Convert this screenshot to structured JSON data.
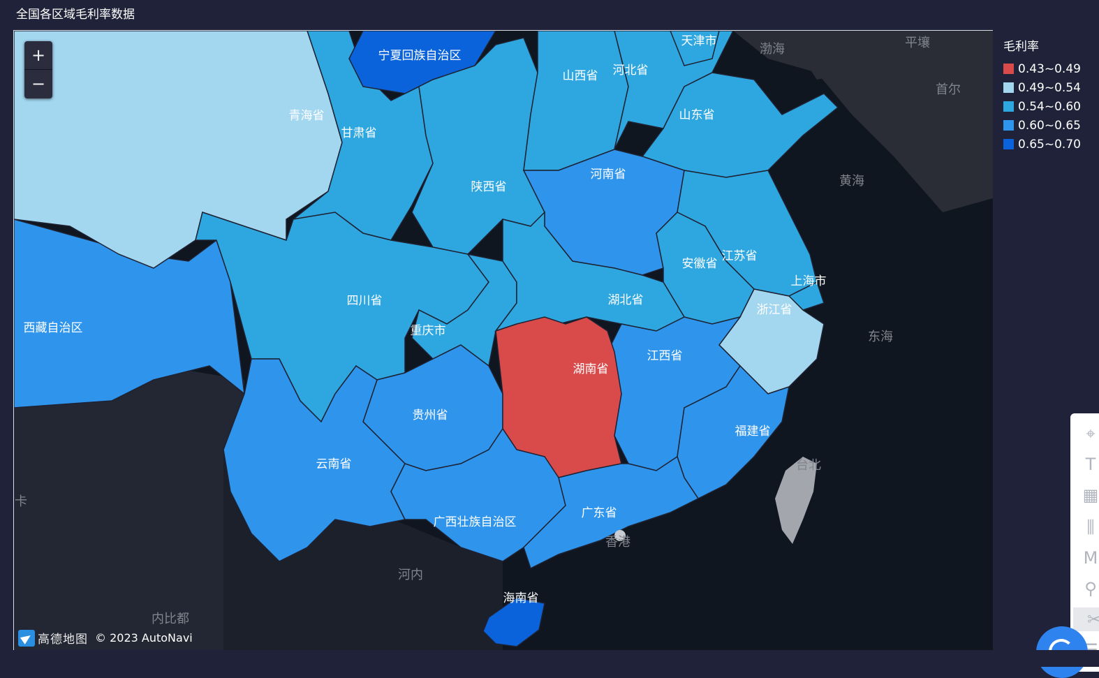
{
  "page": {
    "title": "全国各区域毛利率数据"
  },
  "zoom": {
    "in_label": "+",
    "out_label": "−"
  },
  "legend": {
    "title": "毛利率",
    "items": [
      {
        "range": "0.43~0.49",
        "color": "#d94a4a"
      },
      {
        "range": "0.49~0.54",
        "color": "#a3d7f0"
      },
      {
        "range": "0.54~0.60",
        "color": "#2ea7e0"
      },
      {
        "range": "0.60~0.65",
        "color": "#2f95ec"
      },
      {
        "range": "0.65~0.70",
        "color": "#0b63db"
      }
    ]
  },
  "provinces": {
    "ningxia": "宁夏回族自治区",
    "qinghai": "青海省",
    "gansu": "甘肃省",
    "shanxi": "山西省",
    "hebei": "河北省",
    "tianjin": "天津市",
    "shandong": "山东省",
    "shaanxi": "陕西省",
    "henan": "河南省",
    "jiangsu": "江苏省",
    "anhui": "安徽省",
    "shanghai": "上海市",
    "sichuan": "四川省",
    "hubei": "湖北省",
    "zhejiang": "浙江省",
    "tibet": "西藏自治区",
    "chongqing": "重庆市",
    "hunan": "湖南省",
    "jiangxi": "江西省",
    "guizhou": "贵州省",
    "fujian": "福建省",
    "yunnan": "云南省",
    "guangdong": "广东省",
    "guangxi": "广西壮族自治区",
    "hainan": "海南省"
  },
  "basemap_labels": {
    "bohai": "渤海",
    "pyongyang": "平壤",
    "seoul": "首尔",
    "yellow_sea": "黄海",
    "east_sea": "东海",
    "taipei": "台北",
    "hong_kong": "香港",
    "hanoi": "河内",
    "naypyidaw": "内比都",
    "left_edge": "卡"
  },
  "attribution": {
    "brand": "高德地图",
    "copyright": "© 2023 AutoNavi"
  }
}
